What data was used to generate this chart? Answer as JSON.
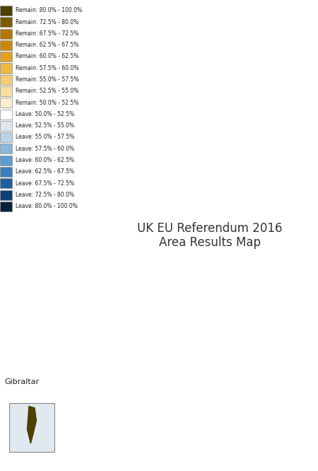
{
  "title": "",
  "legend_labels": [
    "Remain: 80.0% - 100.0%",
    "Remain: 72.5% - 80.0%",
    "Remain: 67.5% - 72.5%",
    "Remain: 62.5% - 67.5%",
    "Remain: 60.0% - 62.5%",
    "Remain: 57.5% - 60.0%",
    "Remain: 55.0% - 57.5%",
    "Remain: 52.5% - 55.0%",
    "Remain: 50.0% - 52.5%",
    "Leave: 50.0% - 52.5%",
    "Leave: 52.5% - 55.0%",
    "Leave: 55.0% - 57.5%",
    "Leave: 57.5% - 60.0%",
    "Leave: 60.0% - 62.5%",
    "Leave: 62.5% - 67.5%",
    "Leave: 67.5% - 72.5%",
    "Leave: 72.5% - 80.0%",
    "Leave: 80.0% - 100.0%"
  ],
  "legend_colors": [
    "#4d4000",
    "#7a5c00",
    "#b37700",
    "#cc8800",
    "#e6a020",
    "#f0b840",
    "#f5cc70",
    "#f8dfa0",
    "#fcefd0",
    "#ffffff",
    "#dce8f0",
    "#b8d4e8",
    "#8ab8dc",
    "#5c9cce",
    "#3a80c0",
    "#1e5fa0",
    "#0d3f7a",
    "#061f3d"
  ],
  "background_color": "#ffffff",
  "border_color": "#aaaaaa",
  "inset_label": "Gibraltar",
  "figsize": [
    4.5,
    6.66
  ],
  "dpi": 100
}
